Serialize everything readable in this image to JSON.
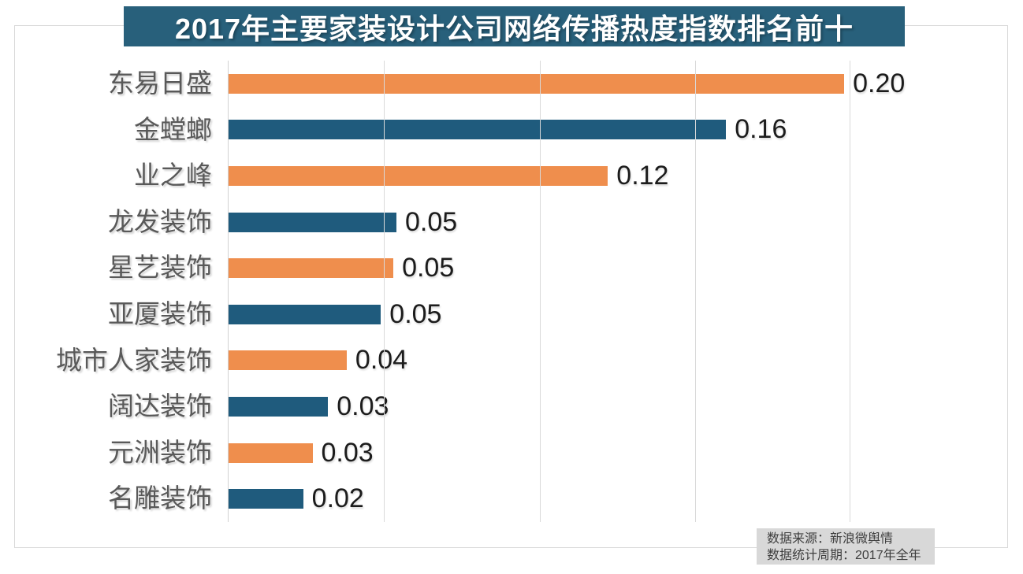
{
  "title": "2017年主要家装设计公司网络传播热度指数排名前十",
  "source": {
    "line1": "数据来源：新浪微舆情",
    "line2": "数据统计周期：2017年全年"
  },
  "colors": {
    "title_bg": "#28607b",
    "title_text": "#ffffff",
    "orange": "#ef8e4d",
    "teal": "#1f5b7d",
    "category_text": "#595959",
    "value_text": "#1c1c1c",
    "gridline": "#d9d9d9",
    "card_border": "#d9d9d9",
    "source_bg": "#d8d8d8",
    "source_text": "#3e3e3e"
  },
  "chart_data": {
    "type": "bar",
    "orientation": "horizontal",
    "title": "2017年主要家装设计公司网络传播热度指数排名前十",
    "categories": [
      "东易日盛",
      "金螳螂",
      "业之峰",
      "龙发装饰",
      "星艺装饰",
      "亚厦装饰",
      "城市人家装饰",
      "阔达装饰",
      "元洲装饰",
      "名雕装饰"
    ],
    "values": [
      0.2,
      0.16,
      0.12,
      0.05,
      0.05,
      0.05,
      0.04,
      0.03,
      0.03,
      0.02
    ],
    "value_labels": [
      "0.20",
      "0.16",
      "0.12",
      "0.05",
      "0.05",
      "0.05",
      "0.04",
      "0.03",
      "0.03",
      "0.02"
    ],
    "bar_lengths_est": [
      0.198,
      0.16,
      0.122,
      0.054,
      0.053,
      0.049,
      0.038,
      0.032,
      0.027,
      0.024
    ],
    "color_sequence": [
      "orange",
      "teal",
      "orange",
      "teal",
      "orange",
      "teal",
      "orange",
      "teal",
      "orange",
      "teal"
    ],
    "xlabel": "",
    "ylabel": "",
    "xlim": [
      0,
      0.2
    ],
    "gridline_interval": 0.05,
    "grid": "vertical-only",
    "legend": "none",
    "data_labels": "end-of-bar"
  }
}
